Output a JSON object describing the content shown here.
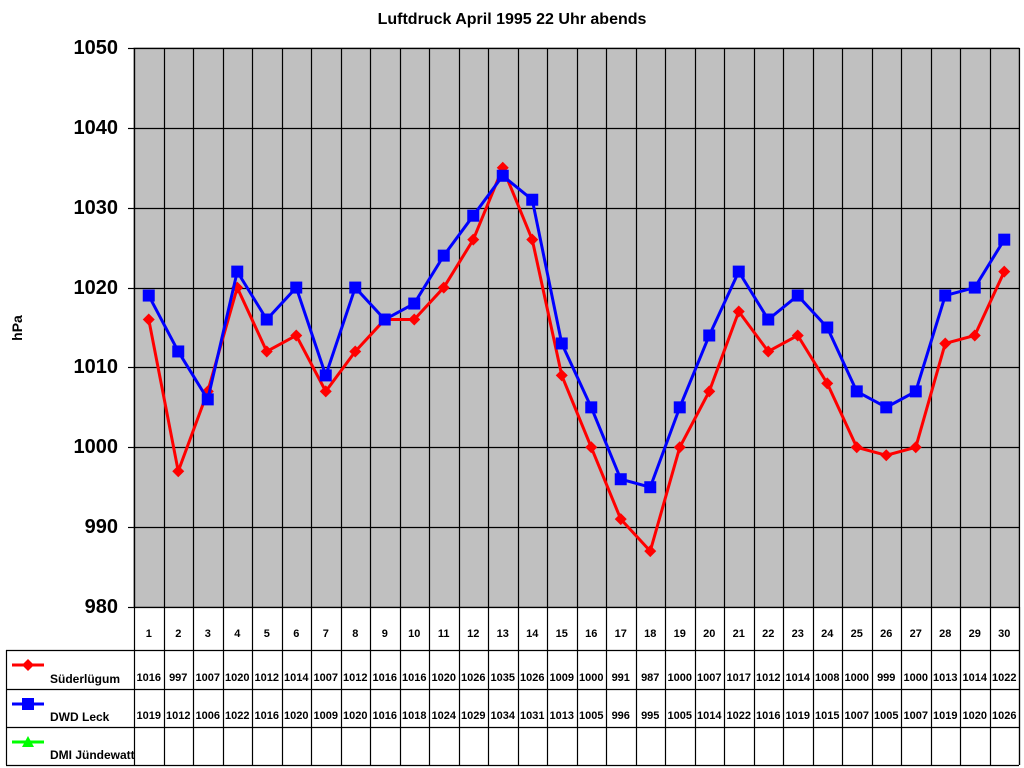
{
  "chart_data": {
    "type": "line",
    "title": "Luftdruck April 1995 22 Uhr abends",
    "xlabel": "",
    "ylabel": "hPa",
    "ylim": [
      980,
      1050
    ],
    "yticks": [
      1050,
      1040,
      1030,
      1020,
      1010,
      1000,
      990,
      980
    ],
    "grid": true,
    "plot_background": "#c0c0c0",
    "legend_position": "data-table-left",
    "categories": [
      "1",
      "2",
      "3",
      "4",
      "5",
      "6",
      "7",
      "8",
      "9",
      "10",
      "11",
      "12",
      "13",
      "14",
      "15",
      "16",
      "17",
      "18",
      "19",
      "20",
      "21",
      "22",
      "23",
      "24",
      "25",
      "26",
      "27",
      "28",
      "29",
      "30"
    ],
    "series": [
      {
        "name": "Süderlügum",
        "color": "#ff0000",
        "marker": "diamond",
        "values": [
          1016,
          997,
          1007,
          1020,
          1012,
          1014,
          1007,
          1012,
          1016,
          1016,
          1020,
          1026,
          1035,
          1026,
          1009,
          1000,
          991,
          987,
          1000,
          1007,
          1017,
          1012,
          1014,
          1008,
          1000,
          999,
          1000,
          1013,
          1014,
          1022
        ]
      },
      {
        "name": "DWD Leck",
        "color": "#0000ff",
        "marker": "square",
        "values": [
          1019,
          1012,
          1006,
          1022,
          1016,
          1020,
          1009,
          1020,
          1016,
          1018,
          1024,
          1029,
          1034,
          1031,
          1013,
          1005,
          996,
          995,
          1005,
          1014,
          1022,
          1016,
          1019,
          1015,
          1007,
          1005,
          1007,
          1019,
          1020,
          1026
        ]
      },
      {
        "name": "DMI Jündewatt",
        "color": "#00ff00",
        "marker": "triangle",
        "values": [
          null,
          null,
          null,
          null,
          null,
          null,
          null,
          null,
          null,
          null,
          null,
          null,
          null,
          null,
          null,
          null,
          null,
          null,
          null,
          null,
          null,
          null,
          null,
          null,
          null,
          null,
          null,
          null,
          null,
          null
        ]
      }
    ]
  },
  "labels": {
    "title": "Luftdruck April 1995 22 Uhr abends",
    "ylabel": "hPa"
  }
}
